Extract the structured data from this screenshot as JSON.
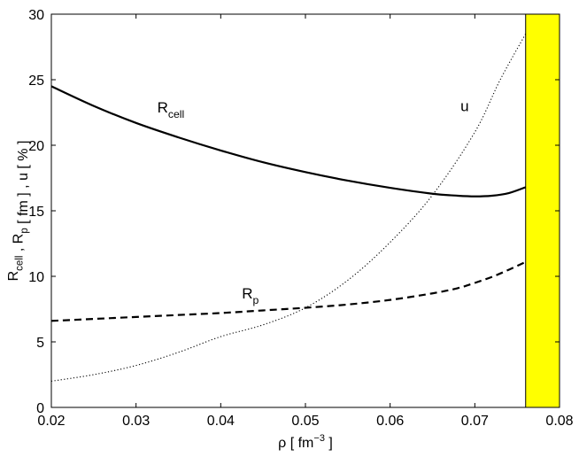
{
  "chart_data": {
    "type": "line",
    "xlabel": {
      "base": "ρ  [ fm",
      "sup": "−3",
      "tail": " ]"
    },
    "ylabel": {
      "parts": [
        {
          "t": "R"
        },
        {
          "t": "cell",
          "sub": true
        },
        {
          "t": " , R"
        },
        {
          "t": "p",
          "sub": true
        },
        {
          "t": "  [ fm ] ,  u  [ % ]"
        }
      ]
    },
    "xlim": [
      0.02,
      0.08
    ],
    "ylim": [
      0,
      30
    ],
    "xticks": [
      "0.02",
      "0.03",
      "0.04",
      "0.05",
      "0.06",
      "0.07",
      "0.08"
    ],
    "xtick_values": [
      0.02,
      0.03,
      0.04,
      0.05,
      0.06,
      0.07,
      0.08
    ],
    "yticks": [
      "0",
      "5",
      "10",
      "15",
      "20",
      "25",
      "30"
    ],
    "ytick_values": [
      0,
      5,
      10,
      15,
      20,
      25,
      30
    ],
    "grid": false,
    "legend": "none",
    "shaded_region": {
      "x": [
        0.076,
        0.08
      ],
      "color": "#ffff00"
    },
    "series": [
      {
        "name": "R_cell",
        "style": "solid",
        "color": "#000000",
        "x": [
          0.02,
          0.025,
          0.03,
          0.035,
          0.04,
          0.045,
          0.05,
          0.055,
          0.06,
          0.065,
          0.068,
          0.07,
          0.072,
          0.074,
          0.076
        ],
        "y": [
          24.5,
          23.0,
          21.7,
          20.6,
          19.6,
          18.7,
          17.95,
          17.3,
          16.75,
          16.3,
          16.15,
          16.1,
          16.15,
          16.35,
          16.8
        ]
      },
      {
        "name": "R_p",
        "style": "dashed",
        "color": "#000000",
        "x": [
          0.02,
          0.025,
          0.03,
          0.035,
          0.04,
          0.045,
          0.05,
          0.055,
          0.06,
          0.065,
          0.068,
          0.07,
          0.072,
          0.074,
          0.076
        ],
        "y": [
          6.6,
          6.75,
          6.9,
          7.05,
          7.2,
          7.4,
          7.6,
          7.85,
          8.2,
          8.7,
          9.1,
          9.5,
          9.95,
          10.5,
          11.1
        ]
      },
      {
        "name": "u",
        "style": "dotted",
        "color": "#000000",
        "x": [
          0.02,
          0.025,
          0.03,
          0.035,
          0.04,
          0.045,
          0.05,
          0.055,
          0.06,
          0.065,
          0.07,
          0.073,
          0.076
        ],
        "y": [
          2.0,
          2.5,
          3.2,
          4.2,
          5.4,
          6.3,
          7.6,
          9.7,
          12.6,
          16.2,
          21.0,
          25.0,
          28.5
        ]
      }
    ],
    "annotations": [
      {
        "parts": [
          {
            "t": "R"
          },
          {
            "t": "cell",
            "sub": true
          }
        ],
        "x": 0.0325,
        "y": 22.5
      },
      {
        "parts": [
          {
            "t": "R"
          },
          {
            "t": "p",
            "sub": true
          }
        ],
        "x": 0.0425,
        "y": 8.3
      },
      {
        "parts": [
          {
            "t": "u"
          }
        ],
        "x": 0.0683,
        "y": 22.6
      }
    ]
  }
}
